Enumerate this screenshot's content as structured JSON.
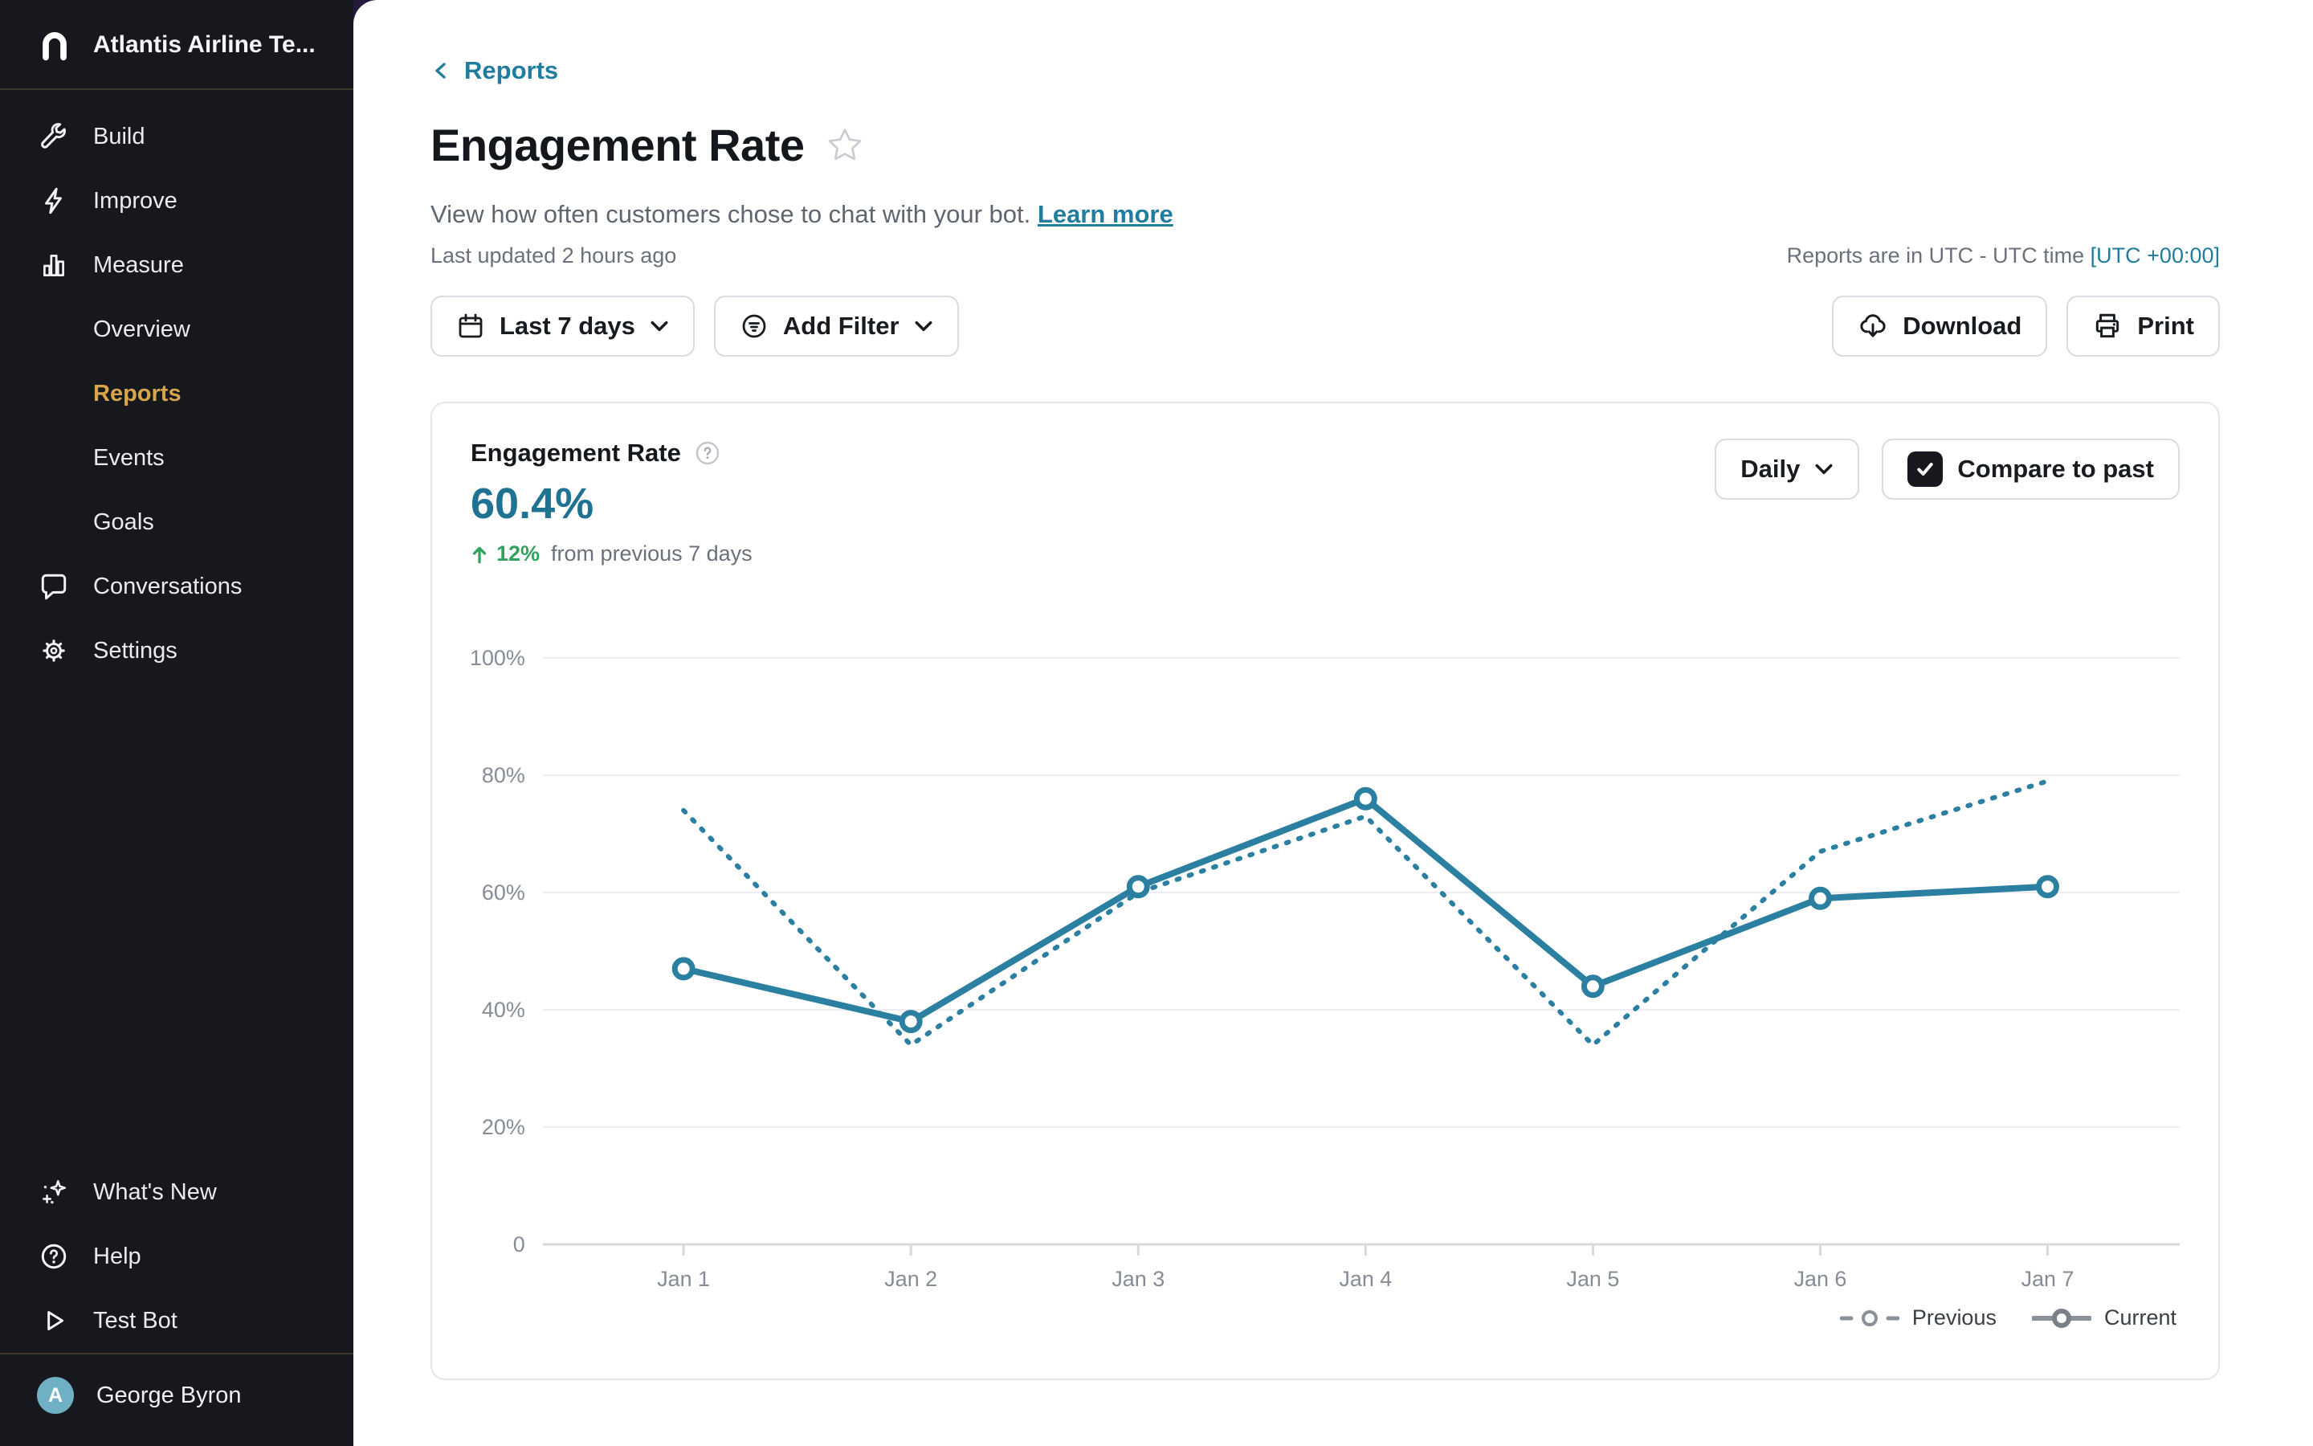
{
  "sidebar": {
    "workspace_name": "Atlantis Airline Te...",
    "items": [
      {
        "label": "Build",
        "icon": "wrench-icon"
      },
      {
        "label": "Improve",
        "icon": "lightning-icon"
      },
      {
        "label": "Measure",
        "icon": "bar-chart-icon"
      },
      {
        "label": "Overview",
        "sub": true
      },
      {
        "label": "Reports",
        "sub": true,
        "active": true
      },
      {
        "label": "Events",
        "sub": true
      },
      {
        "label": "Goals",
        "sub": true
      },
      {
        "label": "Conversations",
        "icon": "chat-icon"
      },
      {
        "label": "Settings",
        "icon": "gear-icon"
      }
    ],
    "footer_items": [
      {
        "label": "What's New",
        "icon": "sparkles-icon"
      },
      {
        "label": "Help",
        "icon": "help-icon"
      },
      {
        "label": "Test Bot",
        "icon": "play-icon"
      }
    ],
    "user": {
      "name": "George Byron",
      "avatar_initial": "A"
    }
  },
  "header": {
    "back_label": "Reports",
    "title": "Engagement Rate",
    "description": "View how often customers chose to chat with your bot.",
    "learn_more_label": "Learn more",
    "last_updated": "Last updated 2 hours ago",
    "timezone_note": "Reports are in UTC - UTC time",
    "timezone_link": "[UTC +00:00]"
  },
  "toolbar": {
    "date_range_label": "Last 7 days",
    "add_filter_label": "Add Filter",
    "download_label": "Download",
    "print_label": "Print"
  },
  "card": {
    "metric_label": "Engagement Rate",
    "metric_value": "60.4%",
    "delta_value": "12%",
    "delta_suffix": "from previous 7 days",
    "granularity_label": "Daily",
    "compare_label": "Compare to past",
    "compare_checked": true
  },
  "chart_data": {
    "type": "line",
    "title": "Engagement Rate",
    "categories": [
      "Jan 1",
      "Jan 2",
      "Jan 3",
      "Jan 4",
      "Jan 5",
      "Jan 6",
      "Jan 7"
    ],
    "series": [
      {
        "name": "Current",
        "style": "solid",
        "values": [
          47,
          38,
          61,
          76,
          44,
          59,
          61
        ]
      },
      {
        "name": "Previous",
        "style": "dotted",
        "values": [
          74,
          34,
          60,
          73,
          34,
          67,
          79
        ]
      }
    ],
    "ylabel_ticks": [
      "100%",
      "80%",
      "60%",
      "40%",
      "20%",
      "0"
    ],
    "ylim": [
      0,
      100
    ],
    "grid": true,
    "legend_position": "bottom-right",
    "line_color": "#2b7fa1"
  },
  "legend": {
    "previous_label": "Previous",
    "current_label": "Current"
  },
  "colors": {
    "accent": "#217c9e",
    "positive": "#2fa35e",
    "active_nav": "#d7a64b",
    "avatar_bg": "#6fb0c5",
    "sidebar_bg": "#16181d"
  }
}
